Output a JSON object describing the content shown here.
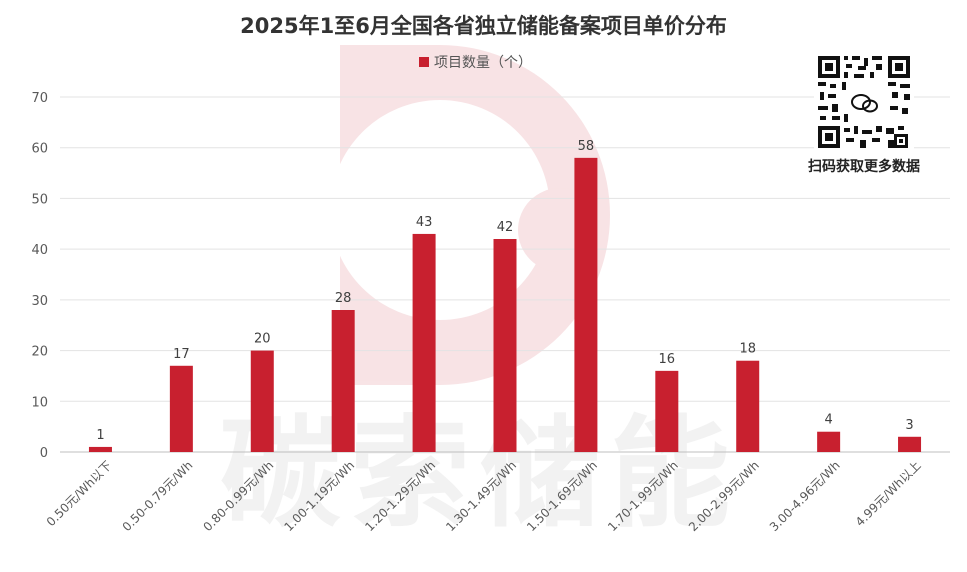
{
  "chart_data": {
    "type": "bar",
    "title": "2025年1至6月全国各省独立储能备案项目单价分布",
    "categories": [
      "0.50元/Wh以下",
      "0.50-0.79元/Wh",
      "0.80-0.99元/Wh",
      "1.00-1.19元/Wh",
      "1.20-1.29元/Wh",
      "1.30-1.49元/Wh",
      "1.50-1.69元/Wh",
      "1.70-1.99元/Wh",
      "2.00-2.99元/Wh",
      "3.00-4.96元/Wh",
      "4.99元/Wh以上"
    ],
    "series": [
      {
        "name": "项目数量（个）",
        "values": [
          1,
          17,
          20,
          28,
          43,
          42,
          58,
          16,
          18,
          4,
          3
        ],
        "color": "#C8202F"
      }
    ],
    "ylim": [
      0,
      70
    ],
    "yticks": [
      0,
      10,
      20,
      30,
      40,
      50,
      60,
      70
    ],
    "grid": true,
    "legend": "top-center",
    "data_labels": true
  },
  "watermark": {
    "text": "碳索储能"
  },
  "qr": {
    "caption": "扫码获取更多数据"
  }
}
